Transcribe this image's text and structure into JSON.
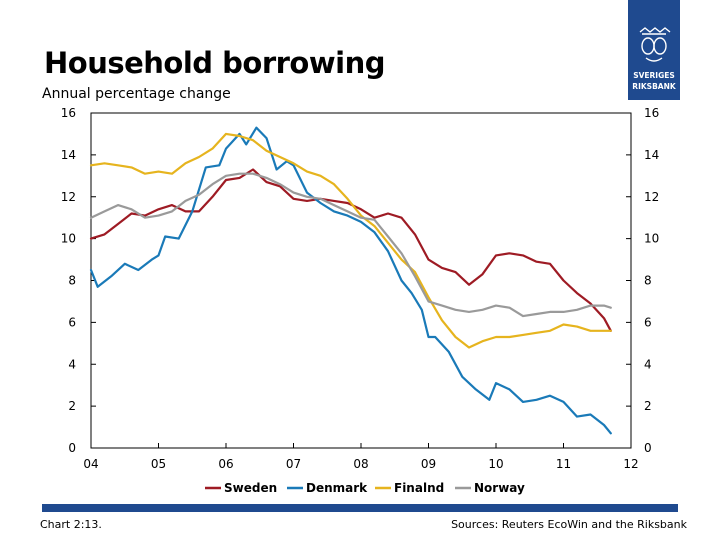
{
  "header": {
    "title": "Household borrowing",
    "subtitle": "Annual percentage change"
  },
  "logo": {
    "text_line1": "SVERIGES",
    "text_line2": "RIKSBANK"
  },
  "footer": {
    "left": "Chart 2:13.",
    "right": "Sources: Reuters EcoWin and the Riksbank"
  },
  "colors": {
    "brand_blue": "#1f4a8f",
    "sweden": "#9e1b24",
    "denmark": "#1a7ab8",
    "finland": "#e6b41e",
    "norway": "#9a9a9a"
  },
  "chart_data": {
    "type": "line",
    "x_tick_labels": [
      "04",
      "05",
      "06",
      "07",
      "08",
      "09",
      "10",
      "11",
      "12"
    ],
    "y_tick_labels": [
      "0",
      "2",
      "4",
      "6",
      "8",
      "10",
      "12",
      "14",
      "16"
    ],
    "xlim": [
      2004,
      2012
    ],
    "ylim": [
      0,
      16
    ],
    "grid": false,
    "legend_position": "bottom",
    "series": [
      {
        "name": "Sweden",
        "color": "#9e1b24",
        "x": [
          2004.0,
          2004.2,
          2004.4,
          2004.6,
          2004.8,
          2005.0,
          2005.2,
          2005.4,
          2005.6,
          2005.8,
          2006.0,
          2006.2,
          2006.4,
          2006.6,
          2006.8,
          2007.0,
          2007.2,
          2007.4,
          2007.6,
          2007.8,
          2008.0,
          2008.2,
          2008.4,
          2008.6,
          2008.8,
          2009.0,
          2009.2,
          2009.4,
          2009.6,
          2009.8,
          2010.0,
          2010.2,
          2010.4,
          2010.6,
          2010.8,
          2011.0,
          2011.2,
          2011.4,
          2011.6,
          2011.7
        ],
        "y": [
          10.0,
          10.2,
          10.7,
          11.2,
          11.1,
          11.4,
          11.6,
          11.3,
          11.3,
          12.0,
          12.8,
          12.9,
          13.3,
          12.7,
          12.5,
          11.9,
          11.8,
          11.9,
          11.8,
          11.7,
          11.4,
          11.0,
          11.2,
          11.0,
          10.2,
          9.0,
          8.6,
          8.4,
          7.8,
          8.3,
          9.2,
          9.3,
          9.2,
          8.9,
          8.8,
          8.0,
          7.4,
          6.9,
          6.2,
          5.6
        ]
      },
      {
        "name": "Denmark",
        "color": "#1a7ab8",
        "x": [
          2004.0,
          2004.1,
          2004.3,
          2004.5,
          2004.7,
          2004.9,
          2005.0,
          2005.1,
          2005.3,
          2005.5,
          2005.7,
          2005.9,
          2006.0,
          2006.2,
          2006.3,
          2006.45,
          2006.6,
          2006.75,
          2006.9,
          2007.0,
          2007.2,
          2007.4,
          2007.6,
          2007.8,
          2008.0,
          2008.2,
          2008.4,
          2008.6,
          2008.75,
          2008.9,
          2009.0,
          2009.1,
          2009.3,
          2009.5,
          2009.7,
          2009.9,
          2010.0,
          2010.2,
          2010.4,
          2010.6,
          2010.8,
          2011.0,
          2011.2,
          2011.4,
          2011.6,
          2011.7
        ],
        "y": [
          8.5,
          7.7,
          8.2,
          8.8,
          8.5,
          9.0,
          9.2,
          10.1,
          10.0,
          11.3,
          13.4,
          13.5,
          14.3,
          15.0,
          14.5,
          15.3,
          14.8,
          13.3,
          13.7,
          13.5,
          12.2,
          11.7,
          11.3,
          11.1,
          10.8,
          10.3,
          9.4,
          8.0,
          7.4,
          6.6,
          5.3,
          5.3,
          4.6,
          3.4,
          2.8,
          2.3,
          3.1,
          2.8,
          2.2,
          2.3,
          2.5,
          2.2,
          1.5,
          1.6,
          1.1,
          0.7
        ]
      },
      {
        "name": "Finalnd",
        "color": "#e6b41e",
        "x": [
          2004.0,
          2004.2,
          2004.4,
          2004.6,
          2004.8,
          2005.0,
          2005.2,
          2005.4,
          2005.6,
          2005.8,
          2006.0,
          2006.2,
          2006.4,
          2006.6,
          2006.8,
          2007.0,
          2007.2,
          2007.4,
          2007.6,
          2007.8,
          2008.0,
          2008.2,
          2008.4,
          2008.6,
          2008.8,
          2009.0,
          2009.2,
          2009.4,
          2009.6,
          2009.8,
          2010.0,
          2010.2,
          2010.4,
          2010.6,
          2010.8,
          2011.0,
          2011.2,
          2011.4,
          2011.6,
          2011.7
        ],
        "y": [
          13.5,
          13.6,
          13.5,
          13.4,
          13.1,
          13.2,
          13.1,
          13.6,
          13.9,
          14.3,
          15.0,
          14.9,
          14.7,
          14.2,
          13.9,
          13.6,
          13.2,
          13.0,
          12.6,
          11.9,
          11.1,
          10.6,
          9.8,
          9.0,
          8.4,
          7.2,
          6.1,
          5.3,
          4.8,
          5.1,
          5.3,
          5.3,
          5.4,
          5.5,
          5.6,
          5.9,
          5.8,
          5.6,
          5.6,
          5.6
        ]
      },
      {
        "name": "Norway",
        "color": "#9a9a9a",
        "x": [
          2004.0,
          2004.2,
          2004.4,
          2004.6,
          2004.8,
          2005.0,
          2005.2,
          2005.4,
          2005.6,
          2005.8,
          2006.0,
          2006.2,
          2006.4,
          2006.6,
          2006.8,
          2007.0,
          2007.2,
          2007.4,
          2007.6,
          2007.8,
          2008.0,
          2008.2,
          2008.4,
          2008.6,
          2008.8,
          2009.0,
          2009.2,
          2009.4,
          2009.6,
          2009.8,
          2010.0,
          2010.2,
          2010.4,
          2010.6,
          2010.8,
          2011.0,
          2011.2,
          2011.4,
          2011.6,
          2011.7
        ],
        "y": [
          11.0,
          11.3,
          11.6,
          11.4,
          11.0,
          11.1,
          11.3,
          11.8,
          12.1,
          12.6,
          13.0,
          13.1,
          13.1,
          12.9,
          12.6,
          12.2,
          12.0,
          11.9,
          11.6,
          11.3,
          11.0,
          10.9,
          10.1,
          9.3,
          8.2,
          7.0,
          6.8,
          6.6,
          6.5,
          6.6,
          6.8,
          6.7,
          6.3,
          6.4,
          6.5,
          6.5,
          6.6,
          6.8,
          6.8,
          6.7
        ]
      }
    ]
  }
}
